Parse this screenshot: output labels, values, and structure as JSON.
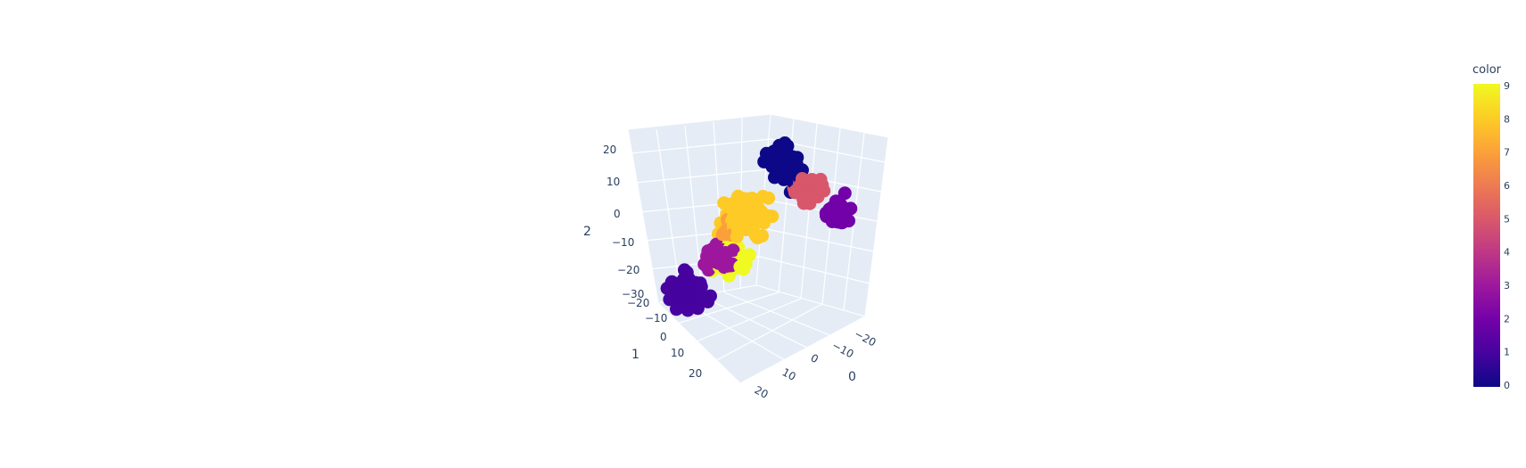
{
  "chart_data": {
    "type": "scatter3d",
    "axes": {
      "x": {
        "title": "0",
        "ticks": [
          "−20",
          "−10",
          "0",
          "10",
          "20"
        ]
      },
      "y": {
        "title": "1",
        "ticks": [
          "−20",
          "−10",
          "0",
          "10",
          "20"
        ]
      },
      "z": {
        "title": "2",
        "ticks": [
          "20",
          "10",
          "0",
          "−10",
          "−20",
          "−30"
        ]
      }
    },
    "colorbar": {
      "title": "color",
      "ticks": [
        "9",
        "8",
        "7",
        "6",
        "5",
        "4",
        "3",
        "2",
        "1",
        "0"
      ],
      "range": [
        0,
        9
      ],
      "colorscale": [
        "#0d0887",
        "#46039f",
        "#7201a8",
        "#9c179e",
        "#bd3786",
        "#d8576b",
        "#ed7953",
        "#fb9f3a",
        "#fdca26",
        "#f0f921"
      ]
    },
    "clusters": [
      {
        "color_value": 0,
        "center": [
          -8,
          -6,
          18
        ],
        "spread": 6,
        "count": 60
      },
      {
        "color_value": 1,
        "center": [
          12,
          8,
          -20
        ],
        "spread": 6,
        "count": 80
      },
      {
        "color_value": 2,
        "center": [
          -18,
          -14,
          2
        ],
        "spread": 5,
        "count": 35
      },
      {
        "color_value": 3,
        "center": [
          16,
          -8,
          0
        ],
        "spread": 5,
        "count": 60
      },
      {
        "color_value": 5,
        "center": [
          -12,
          -10,
          10
        ],
        "spread": 5,
        "count": 55
      },
      {
        "color_value": 7,
        "center": [
          18,
          -14,
          12
        ],
        "spread": 3,
        "count": 8
      },
      {
        "color_value": 8,
        "center": [
          4,
          -4,
          6
        ],
        "spread": 8,
        "count": 85
      },
      {
        "color_value": 9,
        "center": [
          -4,
          10,
          -18
        ],
        "spread": 6,
        "count": 55
      }
    ]
  }
}
